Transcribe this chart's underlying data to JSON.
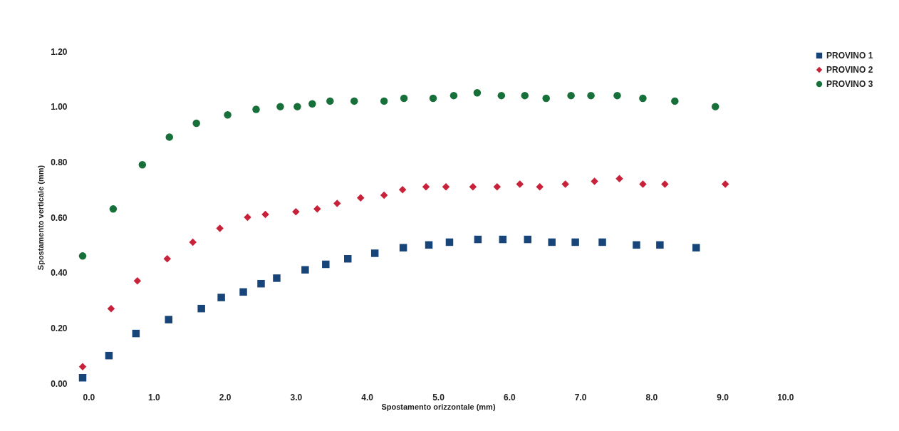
{
  "chart_data": {
    "type": "scatter",
    "xlabel": "Spostamento orizzontale (mm)",
    "ylabel": "Spostamento verticale (mm)",
    "legend": "right",
    "xlim": [
      0,
      10
    ],
    "xticks": [
      {
        "value": 0,
        "label": "0.0"
      },
      {
        "value": 1,
        "label": "1.0"
      },
      {
        "value": 2,
        "label": "2.0"
      },
      {
        "value": 3,
        "label": "3.0"
      },
      {
        "value": 4,
        "label": "4.0"
      },
      {
        "value": 5,
        "label": "5.0"
      },
      {
        "value": 6,
        "label": "6.0"
      },
      {
        "value": 7,
        "label": "7.0"
      },
      {
        "value": 8,
        "label": "8.0"
      },
      {
        "value": 9,
        "label": "9.0"
      },
      {
        "value": 10,
        "label": "10.0"
      }
    ],
    "ylim": [
      0,
      1.2
    ],
    "yticks": [
      {
        "value": 0,
        "label": "0.00"
      },
      {
        "value": 0.2,
        "label": "0.20"
      },
      {
        "value": 0.4,
        "label": "0.40"
      },
      {
        "value": 0.6,
        "label": "0.60"
      },
      {
        "value": 0.8,
        "label": "0.80"
      },
      {
        "value": 1,
        "label": "1.00"
      },
      {
        "value": 1.2,
        "label": "1.20"
      }
    ],
    "series": [
      {
        "name": "PROVINO 1",
        "color": "#17457a",
        "marker": "square",
        "x": [
          0.0,
          0.37,
          0.75,
          1.21,
          1.67,
          1.95,
          2.26,
          2.51,
          2.73,
          3.13,
          3.42,
          3.73,
          4.11,
          4.51,
          4.87,
          5.16,
          5.56,
          5.91,
          6.26,
          6.6,
          6.93,
          7.31,
          7.79,
          8.12,
          8.63
        ],
        "values": [
          0.02,
          0.1,
          0.18,
          0.23,
          0.27,
          0.31,
          0.33,
          0.36,
          0.38,
          0.41,
          0.43,
          0.45,
          0.47,
          0.49,
          0.5,
          0.51,
          0.52,
          0.52,
          0.52,
          0.51,
          0.51,
          0.51,
          0.5,
          0.5,
          0.49
        ]
      },
      {
        "name": "PROVINO 2",
        "color": "#c8213a",
        "marker": "diamond",
        "x": [
          0.0,
          0.4,
          0.77,
          1.19,
          1.55,
          1.93,
          2.32,
          2.57,
          3.0,
          3.3,
          3.58,
          3.91,
          4.24,
          4.5,
          4.83,
          5.11,
          5.49,
          5.83,
          6.15,
          6.43,
          6.79,
          7.2,
          7.55,
          7.88,
          8.19,
          9.04
        ],
        "values": [
          0.06,
          0.27,
          0.37,
          0.45,
          0.51,
          0.56,
          0.6,
          0.61,
          0.62,
          0.63,
          0.65,
          0.67,
          0.68,
          0.7,
          0.71,
          0.71,
          0.71,
          0.71,
          0.72,
          0.71,
          0.72,
          0.73,
          0.74,
          0.72,
          0.72,
          0.72
        ]
      },
      {
        "name": "PROVINO 3",
        "color": "#17703a",
        "marker": "circle",
        "x": [
          0.0,
          0.43,
          0.84,
          1.22,
          1.6,
          2.04,
          2.44,
          2.78,
          3.02,
          3.23,
          3.48,
          3.82,
          4.24,
          4.52,
          4.93,
          5.22,
          5.55,
          5.89,
          6.22,
          6.52,
          6.87,
          7.15,
          7.52,
          7.88,
          8.33,
          8.9
        ],
        "values": [
          0.46,
          0.63,
          0.79,
          0.89,
          0.94,
          0.97,
          0.99,
          1.0,
          1.0,
          1.01,
          1.02,
          1.02,
          1.02,
          1.03,
          1.03,
          1.04,
          1.05,
          1.04,
          1.04,
          1.03,
          1.04,
          1.04,
          1.04,
          1.03,
          1.02,
          1.0
        ]
      }
    ]
  }
}
